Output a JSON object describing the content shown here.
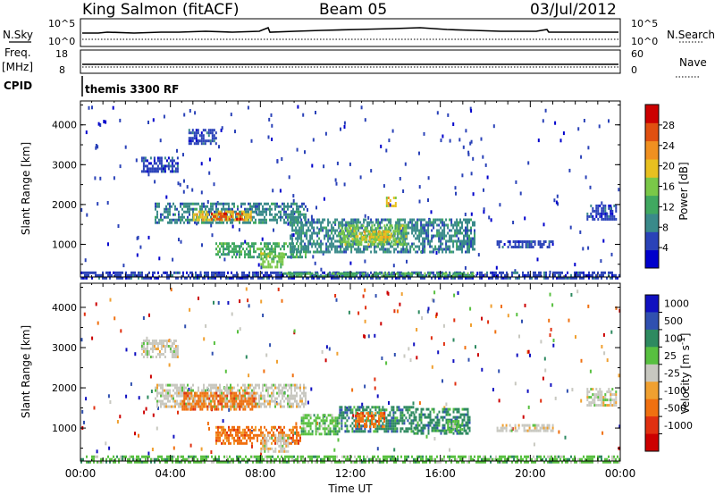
{
  "header": {
    "station": "King Salmon (fitACF)",
    "beam": "Beam 05",
    "date": "03/Jul/2012"
  },
  "summary_panels": {
    "nsky_label": "N.Sky",
    "nsky_ticks": [
      "10^5",
      "10^0"
    ],
    "nsearch_label": "N.Search",
    "nsearch_ticks": [
      "10^5",
      "10^0"
    ],
    "freq_label": "Freq.",
    "freq_unit": "[MHz]",
    "freq_ticks": [
      "18",
      "8"
    ],
    "nave_label": "Nave",
    "nave_ticks": [
      "60",
      "0"
    ],
    "cpid_label": "CPID",
    "cpid_value": "themis 3300 RF"
  },
  "colors": {
    "power": [
      "#0000cc",
      "#2a42b8",
      "#3a8a8a",
      "#40a860",
      "#7ac848",
      "#e8c020",
      "#f09020",
      "#e05010",
      "#cc0000"
    ],
    "velocity": [
      "#1010c0",
      "#3050b0",
      "#2e8a60",
      "#58c040",
      "#c8c8c0",
      "#f0a030",
      "#f07010",
      "#e03010",
      "#cc0000"
    ]
  },
  "chart_data": [
    {
      "type": "heatmap",
      "panel": "power",
      "ylabel": "Slant Range [km]",
      "ylim": [
        180,
        4600
      ],
      "yticks": [
        "1000",
        "2000",
        "3000",
        "4000"
      ],
      "xlim": [
        0,
        24
      ],
      "xticks": [
        "00:00",
        "04:00",
        "08:00",
        "12:00",
        "16:00",
        "20:00",
        "00:00"
      ],
      "colorbar_label": "Power [dB]",
      "colorbar_ticks": [
        "4",
        "8",
        "12",
        "16",
        "20",
        "24",
        "28"
      ],
      "regions": [
        {
          "t": [
            3.3,
            10.0
          ],
          "r": [
            1550,
            2050
          ],
          "level": 2
        },
        {
          "t": [
            5.0,
            7.6
          ],
          "r": [
            1600,
            1850
          ],
          "level": 5
        },
        {
          "t": [
            5.8,
            7.2
          ],
          "r": [
            1650,
            1800
          ],
          "level": 7
        },
        {
          "t": [
            6.0,
            10.0
          ],
          "r": [
            650,
            1050
          ],
          "level": 3
        },
        {
          "t": [
            8.0,
            9.0
          ],
          "r": [
            450,
            800
          ],
          "level": 4
        },
        {
          "t": [
            9.3,
            17.5
          ],
          "r": [
            800,
            1650
          ],
          "level": 2
        },
        {
          "t": [
            11.5,
            14.5
          ],
          "r": [
            1000,
            1500
          ],
          "level": 4
        },
        {
          "t": [
            12.5,
            13.8
          ],
          "r": [
            1100,
            1350
          ],
          "level": 5
        },
        {
          "t": [
            13.5,
            14.0
          ],
          "r": [
            1950,
            2200
          ],
          "level": 5
        },
        {
          "t": [
            0.0,
            24.0
          ],
          "r": [
            180,
            320
          ],
          "level": 1
        },
        {
          "t": [
            9.0,
            17.5
          ],
          "r": [
            180,
            300
          ],
          "level": 3
        },
        {
          "t": [
            2.7,
            4.3
          ],
          "r": [
            2800,
            3200
          ],
          "level": 1
        },
        {
          "t": [
            4.8,
            6.0
          ],
          "r": [
            3500,
            3900
          ],
          "level": 1
        },
        {
          "t": [
            18.5,
            21.0
          ],
          "r": [
            950,
            1100
          ],
          "level": 1
        },
        {
          "t": [
            22.5,
            23.8
          ],
          "r": [
            1600,
            2000
          ],
          "level": 1
        }
      ]
    },
    {
      "type": "heatmap",
      "panel": "velocity",
      "ylabel": "Slant Range [km]",
      "ylim": [
        180,
        4600
      ],
      "yticks": [
        "1000",
        "2000",
        "3000",
        "4000"
      ],
      "xlim": [
        0,
        24
      ],
      "xticks": [
        "00:00",
        "04:00",
        "08:00",
        "12:00",
        "16:00",
        "20:00",
        "00:00"
      ],
      "xlabel": "Time UT",
      "colorbar_label": "Velocity [m s^-1]",
      "colorbar_ticks": [
        "1000",
        "500",
        "100",
        "25",
        "-25",
        "-100",
        "-500",
        "-1000"
      ],
      "regions": [
        {
          "t": [
            3.3,
            10.0
          ],
          "r": [
            1550,
            2100
          ],
          "level": 4
        },
        {
          "t": [
            4.5,
            7.8
          ],
          "r": [
            1450,
            1900
          ],
          "level": 6
        },
        {
          "t": [
            6.0,
            9.8
          ],
          "r": [
            650,
            1050
          ],
          "level": 6
        },
        {
          "t": [
            8.0,
            9.2
          ],
          "r": [
            450,
            850
          ],
          "level": 4
        },
        {
          "t": [
            9.8,
            11.5
          ],
          "r": [
            850,
            1350
          ],
          "level": 3
        },
        {
          "t": [
            11.5,
            14.8
          ],
          "r": [
            950,
            1550
          ],
          "level": 2
        },
        {
          "t": [
            12.2,
            13.5
          ],
          "r": [
            1050,
            1400
          ],
          "level": 6
        },
        {
          "t": [
            14.8,
            17.3
          ],
          "r": [
            900,
            1500
          ],
          "level": 2
        },
        {
          "t": [
            16.3,
            17.0
          ],
          "r": [
            900,
            1200
          ],
          "level": 3
        },
        {
          "t": [
            0.0,
            24.0
          ],
          "r": [
            180,
            320
          ],
          "level": 3
        },
        {
          "t": [
            18.5,
            21.0
          ],
          "r": [
            950,
            1100
          ],
          "level": 4
        },
        {
          "t": [
            22.5,
            23.8
          ],
          "r": [
            1600,
            2000
          ],
          "level": 4
        },
        {
          "t": [
            2.7,
            4.3
          ],
          "r": [
            2800,
            3200
          ],
          "level": 4
        }
      ]
    }
  ]
}
